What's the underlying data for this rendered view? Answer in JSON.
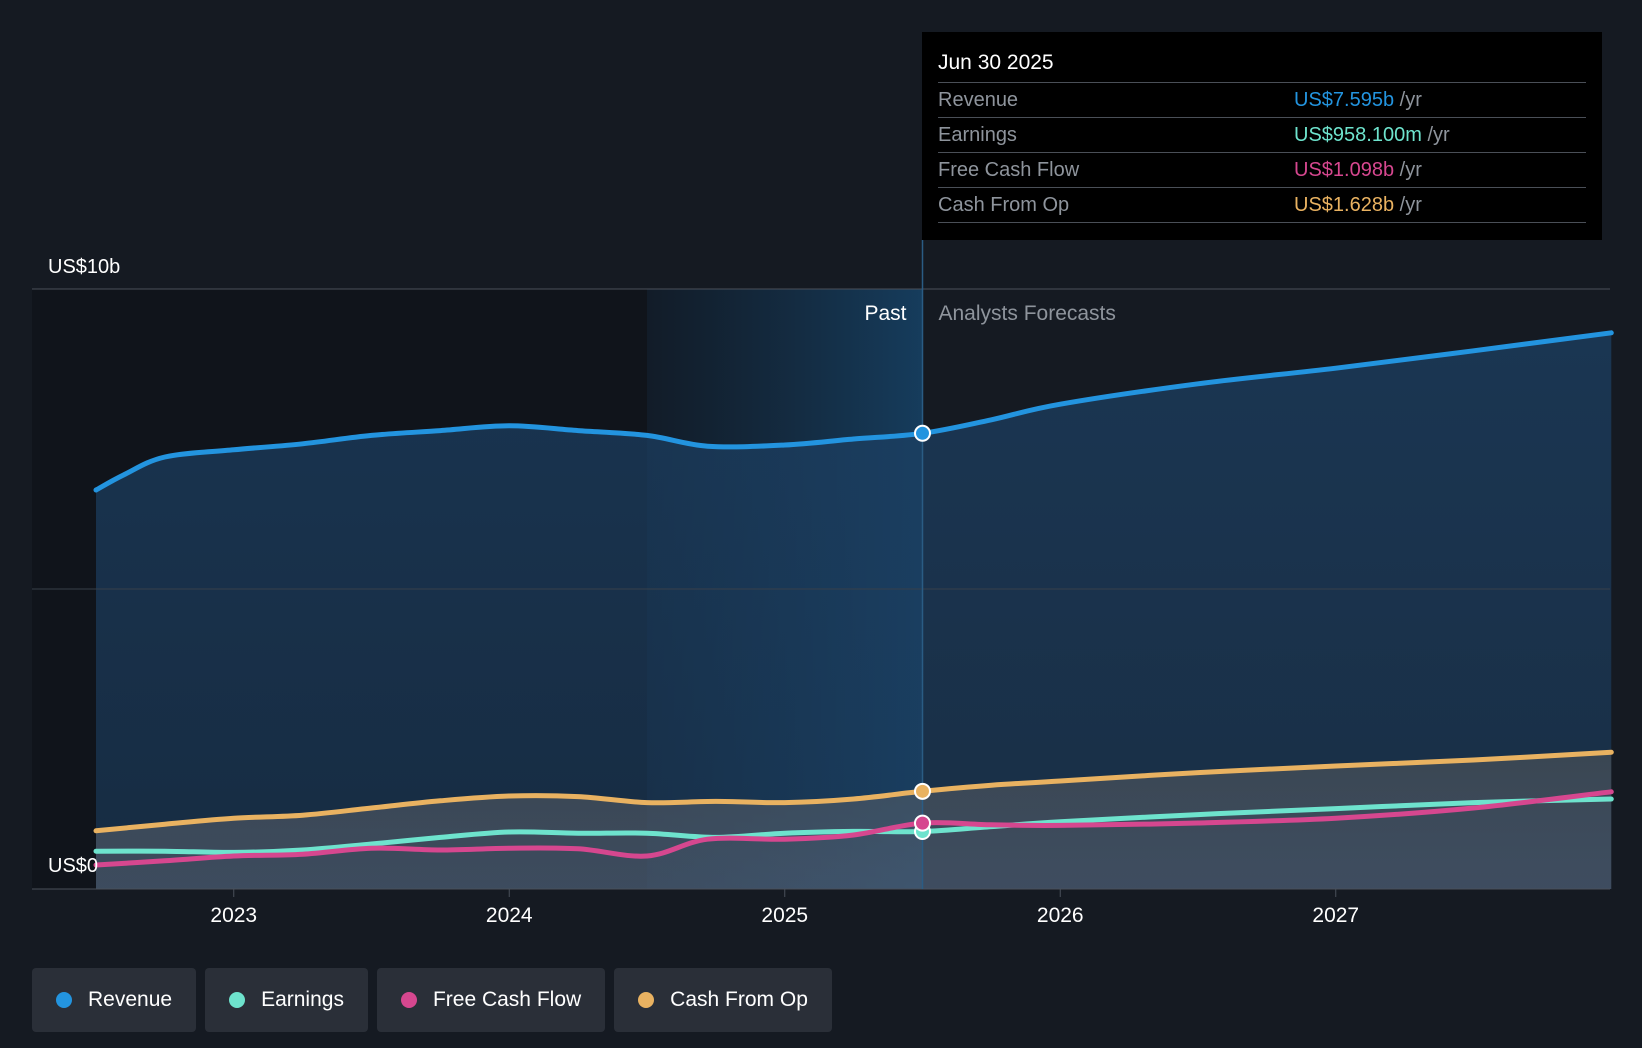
{
  "chart_data": {
    "type": "area",
    "y_top_label": "US$10b",
    "y_bottom_label": "US$0",
    "ylim": [
      0,
      10
    ],
    "y_unit": "US$ billions",
    "xlim": [
      2022.5,
      2028.0
    ],
    "x_ticks": [
      2023,
      2024,
      2025,
      2026,
      2027
    ],
    "past_label": "Past",
    "forecast_label": "Analysts Forecasts",
    "divider_x": 2025.5,
    "shade_start_x": 2024.5,
    "series": [
      {
        "name": "Revenue",
        "color": "#2394df",
        "points": [
          [
            2022.5,
            6.65
          ],
          [
            2022.6,
            6.9
          ],
          [
            2022.75,
            7.2
          ],
          [
            2023.0,
            7.32
          ],
          [
            2023.25,
            7.42
          ],
          [
            2023.5,
            7.56
          ],
          [
            2023.75,
            7.64
          ],
          [
            2024.0,
            7.72
          ],
          [
            2024.25,
            7.64
          ],
          [
            2024.5,
            7.56
          ],
          [
            2024.72,
            7.38
          ],
          [
            2025.0,
            7.4
          ],
          [
            2025.25,
            7.5
          ],
          [
            2025.5,
            7.595
          ],
          [
            2025.75,
            7.82
          ],
          [
            2026.0,
            8.08
          ],
          [
            2026.5,
            8.42
          ],
          [
            2027.0,
            8.68
          ],
          [
            2027.5,
            8.97
          ],
          [
            2028.0,
            9.27
          ]
        ]
      },
      {
        "name": "Earnings",
        "color": "#6ee3cd",
        "points": [
          [
            2022.5,
            0.63
          ],
          [
            2022.75,
            0.63
          ],
          [
            2023.0,
            0.61
          ],
          [
            2023.25,
            0.65
          ],
          [
            2023.5,
            0.75
          ],
          [
            2023.75,
            0.86
          ],
          [
            2024.0,
            0.95
          ],
          [
            2024.25,
            0.93
          ],
          [
            2024.5,
            0.93
          ],
          [
            2024.75,
            0.86
          ],
          [
            2025.0,
            0.93
          ],
          [
            2025.25,
            0.96
          ],
          [
            2025.5,
            0.958
          ],
          [
            2025.75,
            1.04
          ],
          [
            2026.0,
            1.12
          ],
          [
            2026.5,
            1.24
          ],
          [
            2027.0,
            1.34
          ],
          [
            2027.5,
            1.44
          ],
          [
            2028.0,
            1.5
          ]
        ]
      },
      {
        "name": "Free Cash Flow",
        "color": "#d6478f",
        "points": [
          [
            2022.5,
            0.4
          ],
          [
            2022.75,
            0.47
          ],
          [
            2023.0,
            0.55
          ],
          [
            2023.25,
            0.58
          ],
          [
            2023.5,
            0.68
          ],
          [
            2023.75,
            0.65
          ],
          [
            2024.0,
            0.68
          ],
          [
            2024.25,
            0.67
          ],
          [
            2024.5,
            0.55
          ],
          [
            2024.72,
            0.83
          ],
          [
            2025.0,
            0.83
          ],
          [
            2025.25,
            0.9
          ],
          [
            2025.5,
            1.098
          ],
          [
            2025.75,
            1.07
          ],
          [
            2026.0,
            1.06
          ],
          [
            2026.5,
            1.1
          ],
          [
            2027.0,
            1.18
          ],
          [
            2027.5,
            1.35
          ],
          [
            2028.0,
            1.62
          ]
        ]
      },
      {
        "name": "Cash From Op",
        "color": "#e9b261",
        "points": [
          [
            2022.5,
            0.97
          ],
          [
            2022.75,
            1.08
          ],
          [
            2023.0,
            1.18
          ],
          [
            2023.25,
            1.23
          ],
          [
            2023.5,
            1.35
          ],
          [
            2023.75,
            1.47
          ],
          [
            2024.0,
            1.55
          ],
          [
            2024.25,
            1.54
          ],
          [
            2024.5,
            1.44
          ],
          [
            2024.75,
            1.46
          ],
          [
            2025.0,
            1.44
          ],
          [
            2025.25,
            1.5
          ],
          [
            2025.5,
            1.628
          ],
          [
            2025.75,
            1.73
          ],
          [
            2026.0,
            1.8
          ],
          [
            2026.5,
            1.94
          ],
          [
            2027.0,
            2.05
          ],
          [
            2027.5,
            2.15
          ],
          [
            2028.0,
            2.28
          ]
        ]
      }
    ]
  },
  "tooltip": {
    "date": "Jun 30 2025",
    "rows": [
      {
        "label": "Revenue",
        "value": "US$7.595b",
        "unit": "/yr",
        "color": "#2394df"
      },
      {
        "label": "Earnings",
        "value": "US$958.100m",
        "unit": "/yr",
        "color": "#6ee3cd"
      },
      {
        "label": "Free Cash Flow",
        "value": "US$1.098b",
        "unit": "/yr",
        "color": "#d6478f"
      },
      {
        "label": "Cash From Op",
        "value": "US$1.628b",
        "unit": "/yr",
        "color": "#e9b261"
      }
    ]
  },
  "legend": [
    {
      "label": "Revenue",
      "color": "#2394df"
    },
    {
      "label": "Earnings",
      "color": "#6ee3cd"
    },
    {
      "label": "Free Cash Flow",
      "color": "#d6478f"
    },
    {
      "label": "Cash From Op",
      "color": "#e9b261"
    }
  ]
}
